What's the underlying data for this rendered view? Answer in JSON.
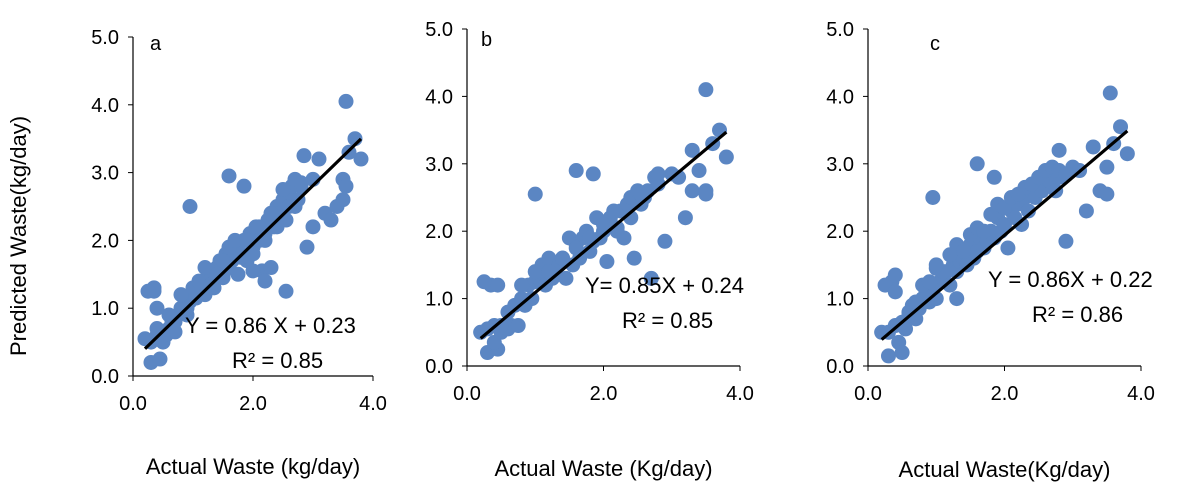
{
  "figure": {
    "shared_ylabel": "Predicted Waste(kg/day)"
  },
  "colors": {
    "marker": "#5B86C3",
    "fit_line": "#000000",
    "axis": "#000000"
  },
  "chart_data": [
    {
      "type": "scatter",
      "panel_label": "a",
      "xlabel": "Actual Waste (kg/day)",
      "ylabel": "Predicted Waste(kg/day)",
      "xlim": [
        0,
        4
      ],
      "ylim": [
        0,
        5
      ],
      "xticks": [
        "0.0",
        "2.0",
        "4.0"
      ],
      "yticks": [
        "0.0",
        "1.0",
        "2.0",
        "3.0",
        "4.0",
        "5.0"
      ],
      "grid": false,
      "fit": {
        "slope": 0.86,
        "intercept": 0.23,
        "x_range": [
          0.2,
          3.8
        ]
      },
      "equation_text": "Y = 0.86 X + 0.23",
      "r2_text": "R² = 0.85",
      "x": [
        0.2,
        0.3,
        0.35,
        0.4,
        0.45,
        0.5,
        0.55,
        0.6,
        0.65,
        0.7,
        0.75,
        0.8,
        0.85,
        0.9,
        0.95,
        1.0,
        1.05,
        1.1,
        1.15,
        1.2,
        1.25,
        1.3,
        1.35,
        1.4,
        1.45,
        1.5,
        1.55,
        1.6,
        1.65,
        1.7,
        1.75,
        1.8,
        1.85,
        1.9,
        1.95,
        2.0,
        2.05,
        2.1,
        2.15,
        2.2,
        2.25,
        2.3,
        2.35,
        2.4,
        2.45,
        2.5,
        2.55,
        2.6,
        2.65,
        2.7,
        2.75,
        2.8,
        2.9,
        3.0,
        3.1,
        3.2,
        3.3,
        3.4,
        3.5,
        3.6,
        3.7,
        3.8,
        0.3,
        0.35,
        0.4,
        0.5,
        0.6,
        0.7,
        0.8,
        0.9,
        1.0,
        1.1,
        1.2,
        1.3,
        1.4,
        1.5,
        1.6,
        1.7,
        1.8,
        1.9,
        2.0,
        2.1,
        2.2,
        2.3,
        2.4,
        2.5,
        2.6,
        2.7,
        2.8,
        3.0,
        3.5,
        3.55,
        0.95,
        1.6,
        1.85,
        2.55,
        2.85,
        3.55,
        0.25,
        0.4,
        1.2,
        1.5,
        2.0,
        2.2
      ],
      "y": [
        0.55,
        0.2,
        1.25,
        0.6,
        0.25,
        0.5,
        0.6,
        0.7,
        0.8,
        0.65,
        0.9,
        1.0,
        1.0,
        0.9,
        1.1,
        1.2,
        1.15,
        1.3,
        1.25,
        1.4,
        1.45,
        1.5,
        1.3,
        1.6,
        1.7,
        1.5,
        1.8,
        1.6,
        1.7,
        1.9,
        1.5,
        1.8,
        2.0,
        1.7,
        2.1,
        1.9,
        2.2,
        2.0,
        1.55,
        2.1,
        2.3,
        1.6,
        2.2,
        2.5,
        2.4,
        2.6,
        2.3,
        2.7,
        2.8,
        2.5,
        2.6,
        2.8,
        1.9,
        2.9,
        3.2,
        2.4,
        2.3,
        2.5,
        2.6,
        3.3,
        3.5,
        3.2,
        0.5,
        1.3,
        0.7,
        0.6,
        0.9,
        0.8,
        1.2,
        1.0,
        1.3,
        1.4,
        1.6,
        1.35,
        1.5,
        1.7,
        1.9,
        2.0,
        1.75,
        2.0,
        1.8,
        2.2,
        2.0,
        2.4,
        2.2,
        2.75,
        2.5,
        2.9,
        2.85,
        2.2,
        2.9,
        2.8,
        2.5,
        2.95,
        2.8,
        1.25,
        3.25,
        4.05,
        1.25,
        1.0,
        1.2,
        1.45,
        1.55,
        1.4
      ]
    },
    {
      "type": "scatter",
      "panel_label": "b",
      "xlabel": "Actual Waste (Kg/day)",
      "xlim": [
        0,
        4
      ],
      "ylim": [
        0,
        5
      ],
      "xticks": [
        "0.0",
        "2.0",
        "4.0"
      ],
      "yticks": [
        "0.0",
        "1.0",
        "2.0",
        "3.0",
        "4.0",
        "5.0"
      ],
      "grid": false,
      "fit": {
        "slope": 0.85,
        "intercept": 0.24,
        "x_range": [
          0.2,
          3.8
        ]
      },
      "equation_text": "Y= 0.85X + 0.24",
      "r2_text": "R² = 0.85",
      "x": [
        0.2,
        0.3,
        0.35,
        0.4,
        0.45,
        0.5,
        0.55,
        0.6,
        0.65,
        0.7,
        0.75,
        0.8,
        0.85,
        0.9,
        0.95,
        1.0,
        1.05,
        1.1,
        1.15,
        1.2,
        1.25,
        1.3,
        1.35,
        1.4,
        1.45,
        1.5,
        1.55,
        1.6,
        1.65,
        1.7,
        1.75,
        1.8,
        1.85,
        1.9,
        1.95,
        2.0,
        2.05,
        2.1,
        2.15,
        2.2,
        2.25,
        2.3,
        2.35,
        2.4,
        2.45,
        2.5,
        2.55,
        2.6,
        2.65,
        2.7,
        2.75,
        2.8,
        2.9,
        3.0,
        3.1,
        3.2,
        3.3,
        3.4,
        3.5,
        3.6,
        3.7,
        3.8,
        0.3,
        0.4,
        0.5,
        0.6,
        0.8,
        1.0,
        1.2,
        1.4,
        1.6,
        1.8,
        2.0,
        2.2,
        2.4,
        2.6,
        2.8,
        3.3,
        3.5,
        1.0,
        1.6,
        1.85,
        2.55,
        3.5,
        0.25,
        0.45
      ],
      "y": [
        0.5,
        0.2,
        1.2,
        0.6,
        0.25,
        0.5,
        0.6,
        0.55,
        0.6,
        0.9,
        0.6,
        1.0,
        0.9,
        1.2,
        1.0,
        1.25,
        1.3,
        1.5,
        1.2,
        1.6,
        1.3,
        1.35,
        1.5,
        1.6,
        1.3,
        1.9,
        1.5,
        1.8,
        1.6,
        1.9,
        2.0,
        1.7,
        1.85,
        2.2,
        1.9,
        2.0,
        1.55,
        2.2,
        2.3,
        2.0,
        2.3,
        1.9,
        2.4,
        2.5,
        1.6,
        2.6,
        2.4,
        2.5,
        2.6,
        1.3,
        2.8,
        2.7,
        1.85,
        2.85,
        2.8,
        2.2,
        2.6,
        2.9,
        2.6,
        3.3,
        3.5,
        3.1,
        0.55,
        0.35,
        0.6,
        0.8,
        1.2,
        1.4,
        1.4,
        1.6,
        1.75,
        1.9,
        2.1,
        2.05,
        2.2,
        2.55,
        2.85,
        3.2,
        4.1,
        2.55,
        2.9,
        2.85,
        2.55,
        2.55,
        1.25,
        1.2
      ]
    },
    {
      "type": "scatter",
      "panel_label": "c",
      "xlabel": "Actual Waste(Kg/day)",
      "xlim": [
        0,
        4
      ],
      "ylim": [
        0,
        5
      ],
      "xticks": [
        "0.0",
        "2.0",
        "4.0"
      ],
      "yticks": [
        "0.0",
        "1.0",
        "2.0",
        "3.0",
        "4.0",
        "5.0"
      ],
      "grid": false,
      "fit": {
        "slope": 0.86,
        "intercept": 0.22,
        "x_range": [
          0.2,
          3.8
        ]
      },
      "equation_text": "Y = 0.86X + 0.22",
      "r2_text": "R² = 0.86",
      "x": [
        0.2,
        0.3,
        0.35,
        0.4,
        0.45,
        0.5,
        0.55,
        0.6,
        0.65,
        0.7,
        0.75,
        0.8,
        0.85,
        0.9,
        0.95,
        1.0,
        1.05,
        1.1,
        1.15,
        1.2,
        1.25,
        1.3,
        1.35,
        1.4,
        1.45,
        1.5,
        1.55,
        1.6,
        1.65,
        1.7,
        1.75,
        1.8,
        1.85,
        1.9,
        1.95,
        2.0,
        2.05,
        2.1,
        2.15,
        2.2,
        2.25,
        2.3,
        2.35,
        2.4,
        2.45,
        2.5,
        2.55,
        2.6,
        2.65,
        2.7,
        2.75,
        2.8,
        2.9,
        3.0,
        3.1,
        3.2,
        3.3,
        3.4,
        3.5,
        3.6,
        3.7,
        3.8,
        0.3,
        0.4,
        0.5,
        0.6,
        0.7,
        0.8,
        0.9,
        1.0,
        1.1,
        1.2,
        1.3,
        1.4,
        1.5,
        1.6,
        1.7,
        1.8,
        1.9,
        2.0,
        2.1,
        2.2,
        2.3,
        2.4,
        2.5,
        2.6,
        2.7,
        2.8,
        2.9,
        3.5,
        3.55,
        0.95,
        1.6,
        1.85,
        2.8,
        0.25,
        0.4,
        1.0,
        1.3
      ],
      "y": [
        0.5,
        0.15,
        1.25,
        0.6,
        0.35,
        0.2,
        0.55,
        0.8,
        0.9,
        0.7,
        0.85,
        1.0,
        1.1,
        0.95,
        1.2,
        1.0,
        1.25,
        1.3,
        1.4,
        1.2,
        1.5,
        1.4,
        1.55,
        1.6,
        1.5,
        1.8,
        1.6,
        1.7,
        1.9,
        1.75,
        1.85,
        2.0,
        1.9,
        2.2,
        2.0,
        2.1,
        1.75,
        2.3,
        2.2,
        2.4,
        2.1,
        2.5,
        2.3,
        2.6,
        2.5,
        2.7,
        2.6,
        2.8,
        2.75,
        2.85,
        2.6,
        2.8,
        1.85,
        2.95,
        2.9,
        2.3,
        3.25,
        2.6,
        2.55,
        3.3,
        3.55,
        3.15,
        0.5,
        1.35,
        0.65,
        0.75,
        0.95,
        1.2,
        1.25,
        1.45,
        1.4,
        1.65,
        1.8,
        1.7,
        1.95,
        2.05,
        2.0,
        2.25,
        2.4,
        2.35,
        2.5,
        2.55,
        2.65,
        2.7,
        2.8,
        2.9,
        2.95,
        2.9,
        2.85,
        2.95,
        4.05,
        2.5,
        3.0,
        2.8,
        3.2,
        1.2,
        1.1,
        1.5,
        1.0
      ]
    }
  ]
}
